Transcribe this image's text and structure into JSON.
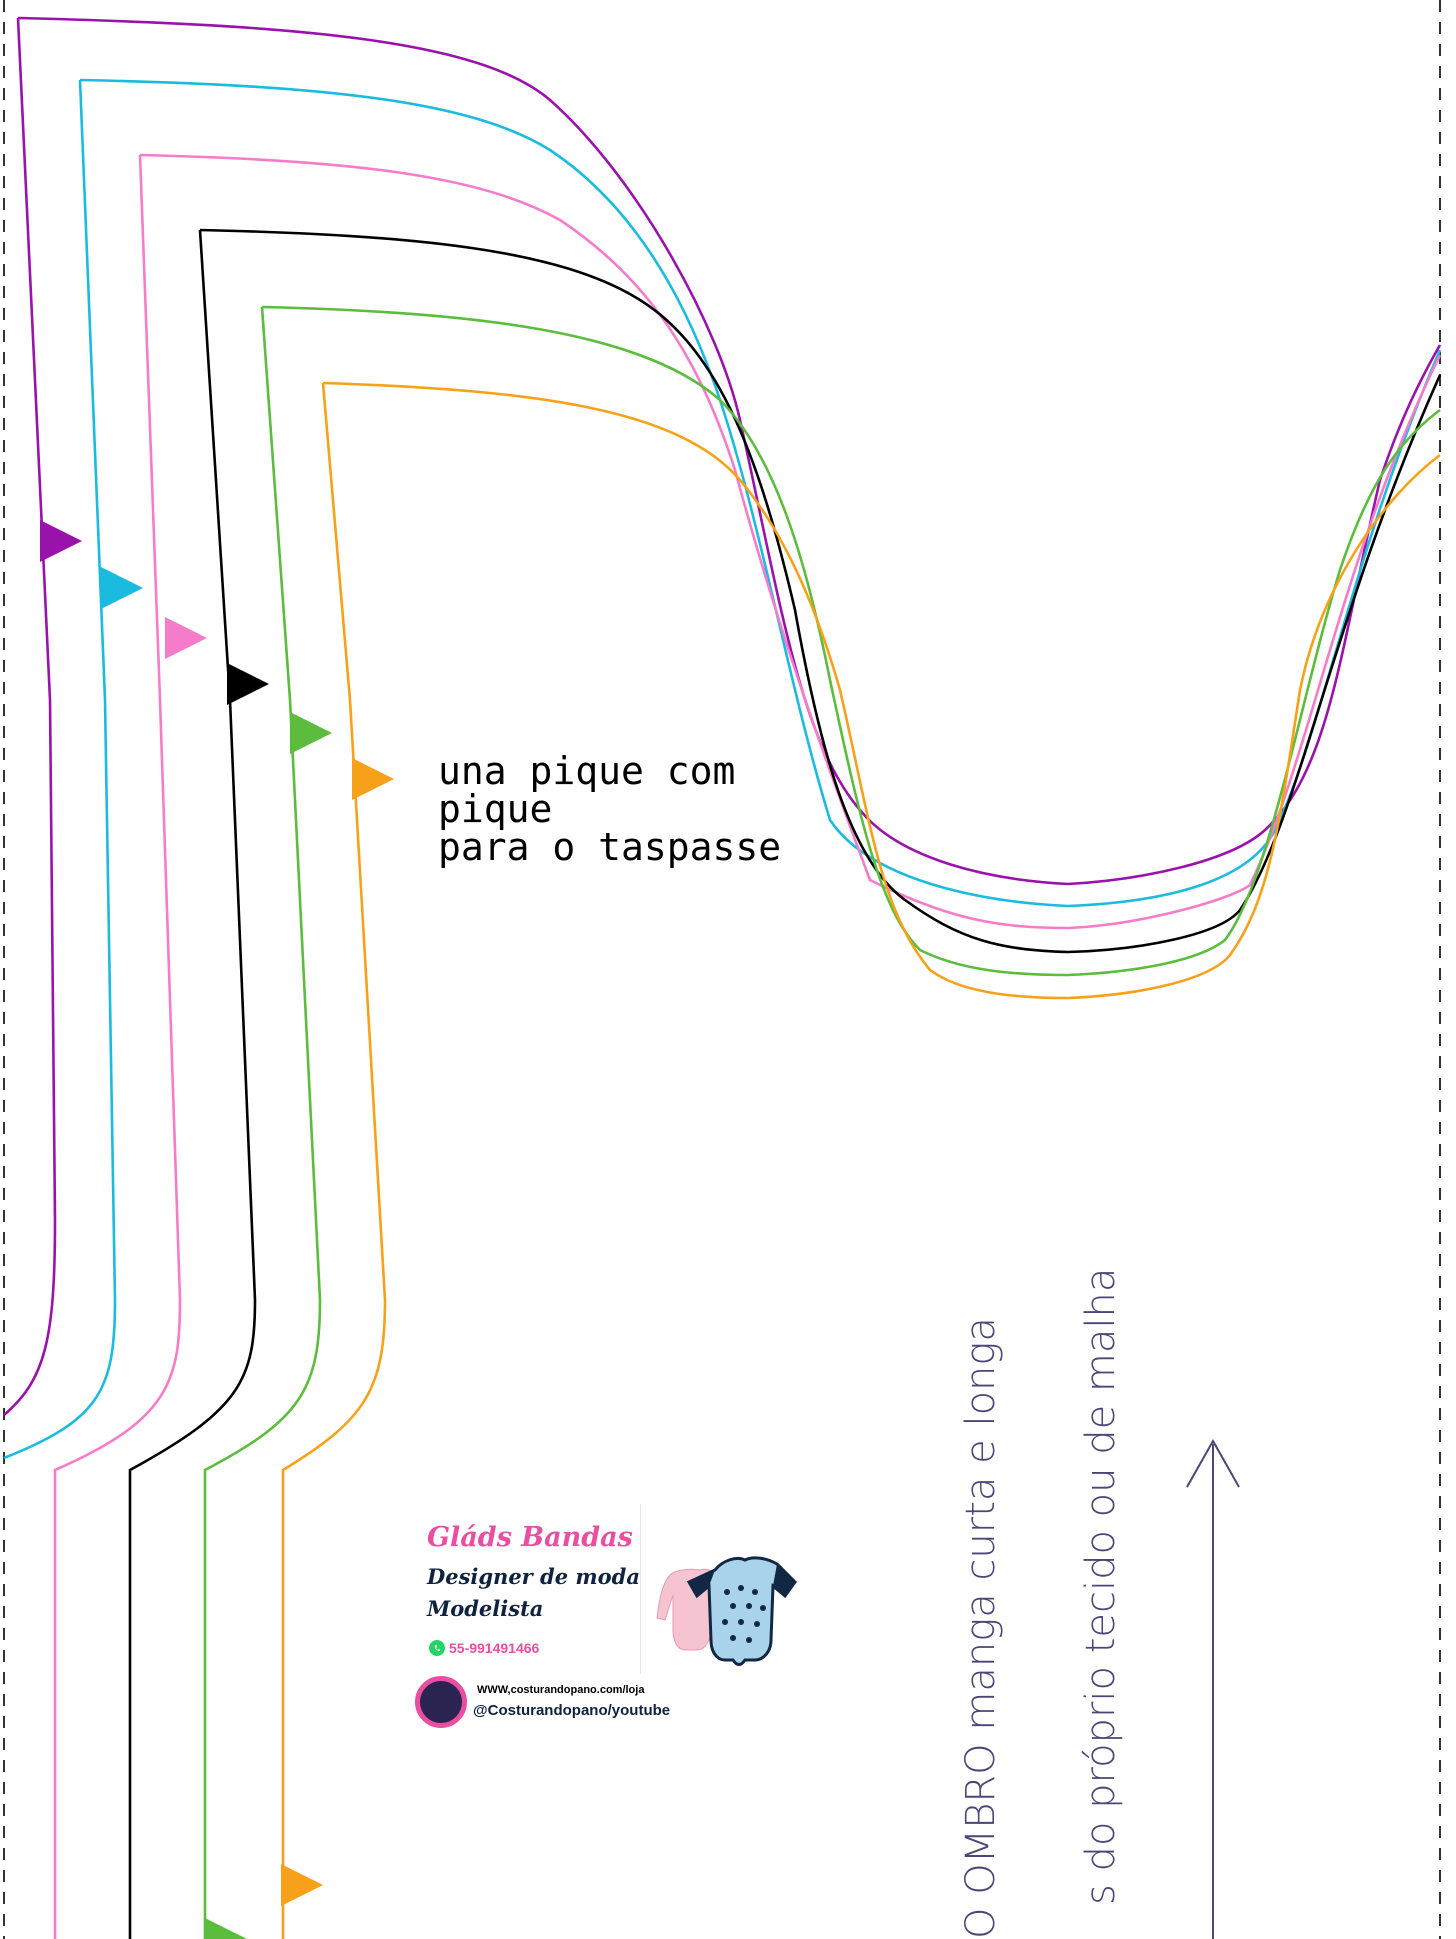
{
  "note": {
    "line1": "una pique com",
    "line2": "pique",
    "line3": "para o taspasse"
  },
  "vertical_labels": {
    "label1": "O OMBRO manga curta e longa",
    "label2": "s do próprio tecido ou de malha"
  },
  "brand": {
    "name": "Gláds Bandas",
    "role1": "Designer de moda",
    "role2": "Modelista",
    "phone": "55-991491466",
    "url": "WWW,costurandopano.com/loja",
    "youtube": "@Costurandopano/youtube"
  },
  "colors": {
    "purple": "#9a12ac",
    "cyan": "#1bbbe0",
    "pink": "#f57ccb",
    "black": "#000000",
    "green": "#5cbc3e",
    "orange": "#f7a11a",
    "label": "#4d4577"
  },
  "icons": [
    "grain-arrow-icon",
    "notch-marker-icon",
    "whatsapp-icon",
    "avatar-logo-icon"
  ]
}
